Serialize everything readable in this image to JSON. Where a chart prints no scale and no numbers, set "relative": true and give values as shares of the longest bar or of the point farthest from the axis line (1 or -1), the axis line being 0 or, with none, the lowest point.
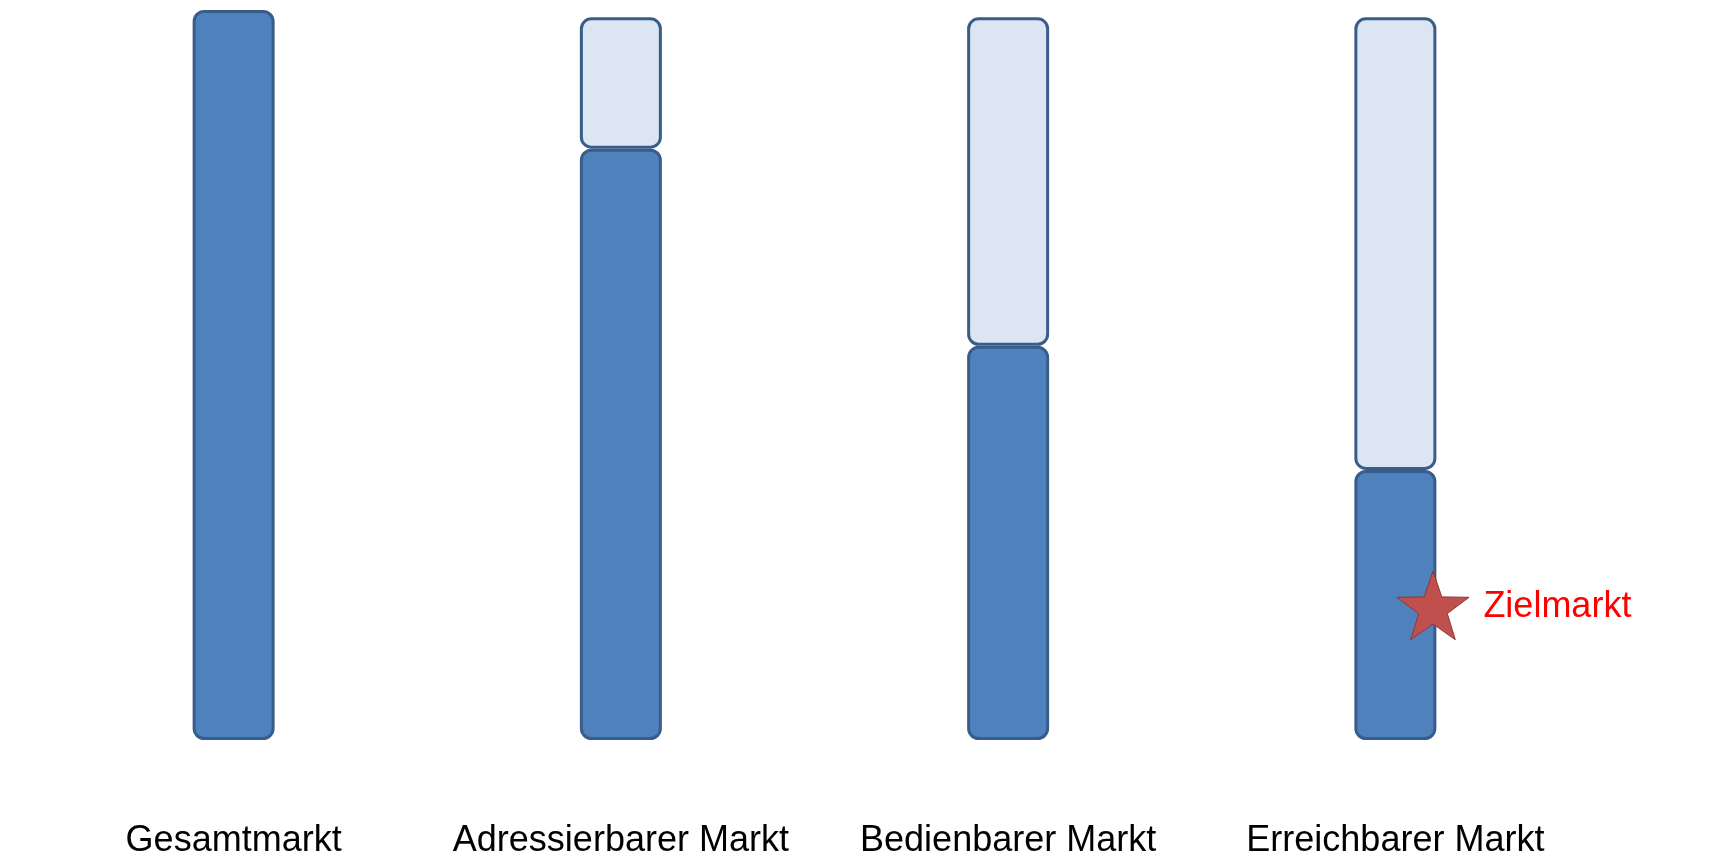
{
  "chart_data": {
    "type": "bar",
    "relative": true,
    "stacked": true,
    "categories": [
      "Gesamtmarkt",
      "Adressierbarer Markt",
      "Bedienbarer Markt",
      "Erreichbarer Markt"
    ],
    "series": [
      {
        "color": "#4f81bd",
        "values": [
          1,
          0.81,
          0.54,
          0.37
        ]
      },
      {
        "color": "#dce6f2",
        "values": [
          0,
          0.18,
          0.45,
          0.62
        ]
      }
    ],
    "annotations": [
      "Zielmarkt"
    ]
  }
}
